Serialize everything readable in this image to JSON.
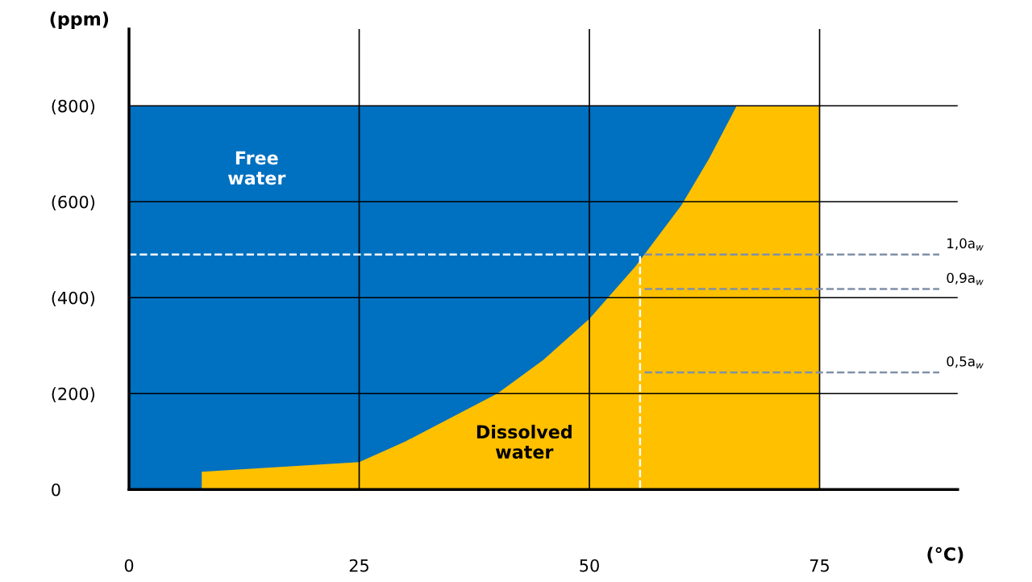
{
  "chart_data": {
    "type": "area",
    "xlabel": "(°C)",
    "ylabel": "(ppm)",
    "x": [
      0,
      7.9,
      7.9,
      25,
      30,
      35,
      40,
      45,
      50,
      55,
      60,
      63,
      66,
      75
    ],
    "series": [
      {
        "name": "Free water",
        "color": "#0070c0",
        "x": [
          0,
          66
        ],
        "values": [
          800,
          800
        ]
      },
      {
        "name": "Dissolved water",
        "color": "#ffc000",
        "values": [
          0,
          0,
          37,
          57,
          100,
          150,
          200,
          270,
          356,
          465,
          593,
          690,
          800,
          800
        ]
      },
      {
        "type": "line",
        "color": "#ffffff",
        "line_style": "dashed",
        "x": [
          0,
          55.5,
          55.5
        ],
        "values": [
          490,
          490,
          0
        ]
      },
      {
        "type": "line",
        "name": "1,0a$_{w}$",
        "color": "#8090a8",
        "line_style": "dashed",
        "x": [
          56,
          88
        ],
        "values": [
          490,
          490
        ]
      },
      {
        "type": "line",
        "name": "0,9a$_{w}$",
        "color": "#8090a8",
        "line_style": "dashed",
        "x": [
          56,
          88
        ],
        "values": [
          418,
          418
        ]
      },
      {
        "type": "line",
        "name": "0,5a$_{w}$",
        "color": "#8090a8",
        "line_style": "dashed",
        "x": [
          56,
          88
        ],
        "values": [
          244,
          244
        ]
      }
    ],
    "xlim": [
      0,
      90
    ],
    "ylim": [
      0,
      960
    ],
    "xticks": [
      0,
      25,
      50,
      75
    ],
    "yticks": [
      0,
      {
        "value": 200,
        "label": "(200)"
      },
      {
        "value": 400,
        "label": "(400)"
      },
      {
        "value": 600,
        "label": "(600)"
      },
      {
        "value": 800,
        "label": "(800)"
      }
    ],
    "grid": true
  }
}
